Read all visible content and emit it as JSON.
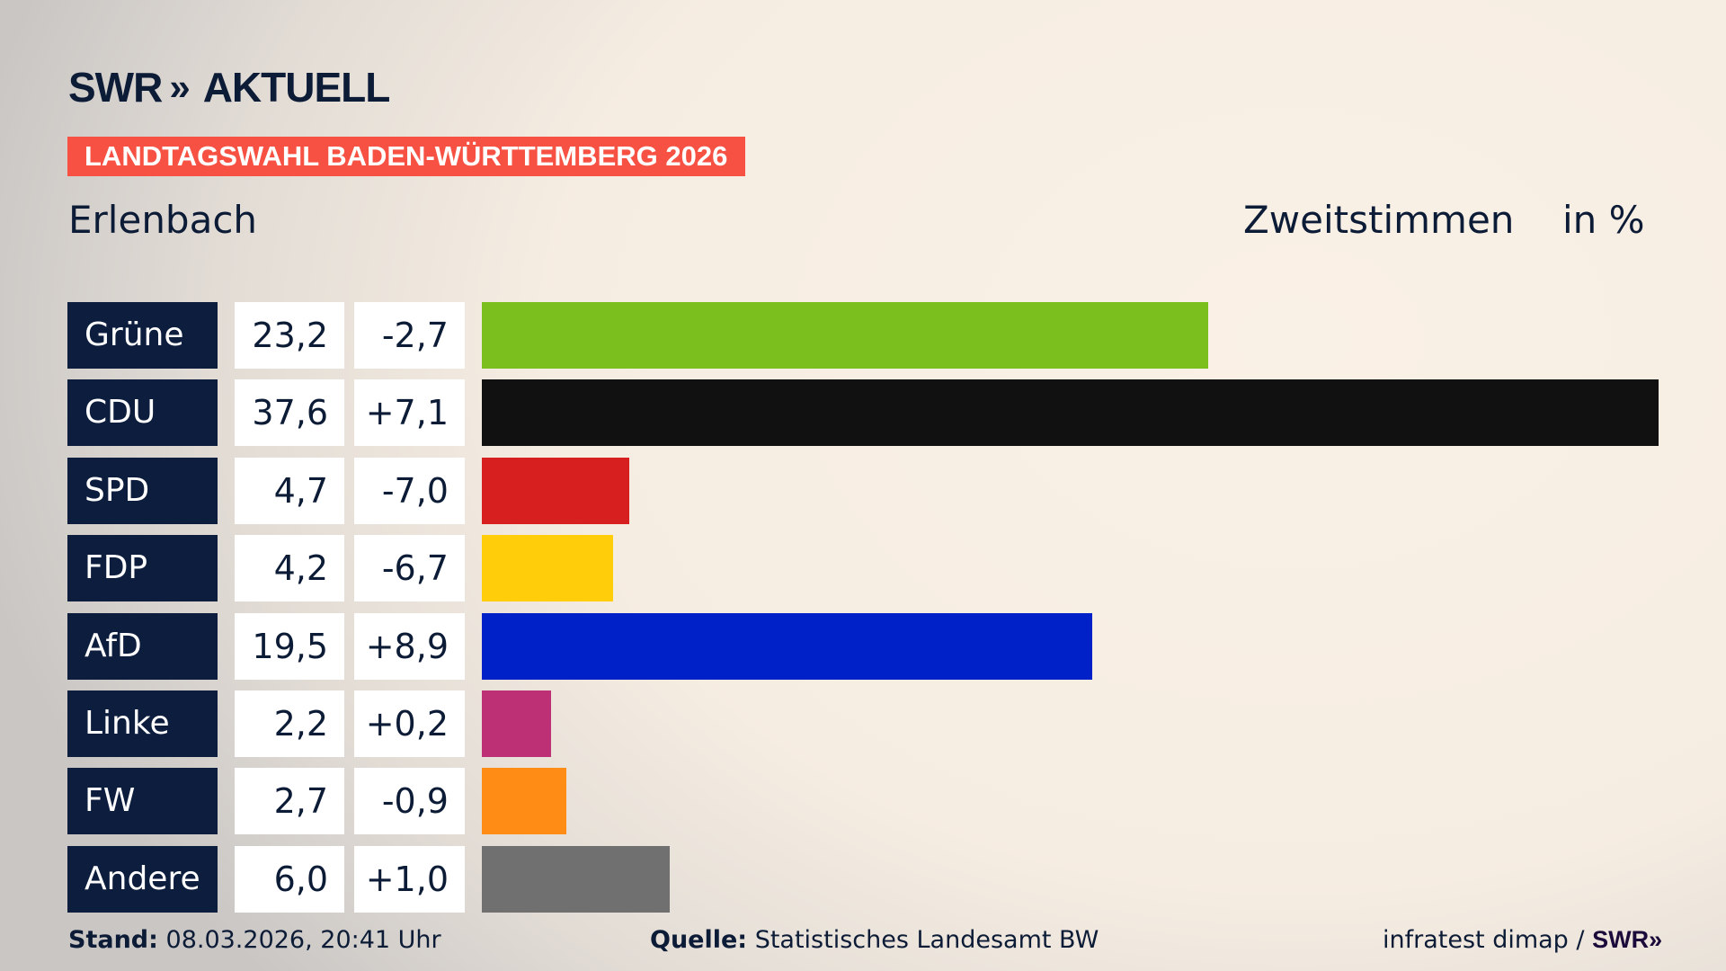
{
  "header": {
    "logo_text": "SWR",
    "logo_chevrons": "»",
    "logo_suffix": "AKTUELL",
    "banner": "LANDTAGSWAHL BADEN-WÜRTTEMBERG 2026",
    "place": "Erlenbach",
    "vote_type": "Zweitstimmen",
    "unit": "in %"
  },
  "chart_data": {
    "type": "bar",
    "orientation": "horizontal",
    "categories": [
      "Grüne",
      "CDU",
      "SPD",
      "FDP",
      "AfD",
      "Linke",
      "FW",
      "Andere"
    ],
    "values": [
      23.2,
      37.6,
      4.7,
      4.2,
      19.5,
      2.2,
      2.7,
      6.0
    ],
    "value_labels": [
      "23,2",
      "37,6",
      "4,7",
      "4,2",
      "19,5",
      "2,2",
      "2,7",
      "6,0"
    ],
    "changes": [
      -2.7,
      7.1,
      -7.0,
      -6.7,
      8.9,
      0.2,
      -0.9,
      1.0
    ],
    "change_labels": [
      "-2,7",
      "+7,1",
      "-7,0",
      "-6,7",
      "+8,9",
      "+0,2",
      "-0,9",
      "+1,0"
    ],
    "colors": [
      "#7abf1e",
      "#111111",
      "#d81f1f",
      "#ffcd0a",
      "#0020c8",
      "#bd3075",
      "#ff8c14",
      "#707070"
    ],
    "ylabel": "Zweitstimmen",
    "unit": "in %",
    "grid": false
  },
  "footer": {
    "stand_label": "Stand:",
    "stand_value": "08.03.2026, 20:41 Uhr",
    "source_label": "Quelle:",
    "source_value": "Statistisches Landesamt BW",
    "credit": "infratest dimap / ",
    "credit_logo": "SWR»"
  }
}
